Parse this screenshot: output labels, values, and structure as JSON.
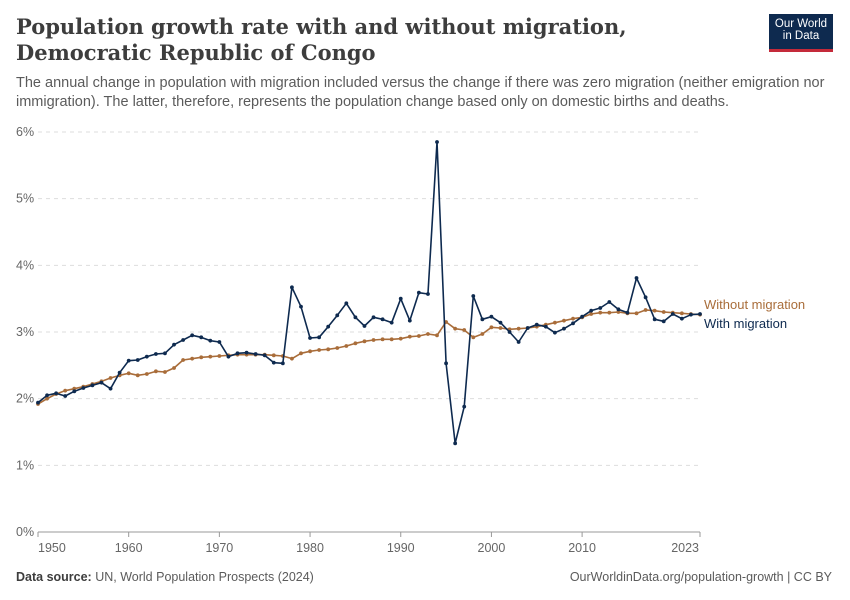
{
  "title": "Population growth rate with and without migration, Democratic Republic of Congo",
  "subtitle": "The annual change in population with migration included versus the change if there was zero migration (neither emigration nor immigration). The latter, therefore, represents the population change based only on domestic births and deaths.",
  "logo": {
    "line1": "Our World",
    "line2": "in Data"
  },
  "footer": {
    "source_label": "Data source:",
    "source_text": "UN, World Population Prospects (2024)",
    "right_text": "OurWorldinData.org/population-growth | CC BY"
  },
  "colors": {
    "with_migration": "#0e2a4f",
    "without_migration": "#a96d3a",
    "grid": "#dddddd",
    "axis": "#999999"
  },
  "chart_data": {
    "type": "line",
    "title": "Population growth rate with and without migration, Democratic Republic of Congo",
    "xlim": [
      1950,
      2023
    ],
    "ylim": [
      0,
      6
    ],
    "y_ticks": [
      0,
      1,
      2,
      3,
      4,
      5,
      6
    ],
    "y_tick_labels": [
      "0%",
      "1%",
      "2%",
      "3%",
      "4%",
      "5%",
      "6%"
    ],
    "x_ticks": [
      1950,
      1960,
      1970,
      1980,
      1990,
      2000,
      2010,
      2023
    ],
    "x_tick_labels": [
      "1950",
      "1960",
      "1970",
      "1980",
      "1990",
      "2000",
      "2010",
      "2023"
    ],
    "grid": "horizontal dashed",
    "legend": "line-end labels",
    "x": [
      1950,
      1951,
      1952,
      1953,
      1954,
      1955,
      1956,
      1957,
      1958,
      1959,
      1960,
      1961,
      1962,
      1963,
      1964,
      1965,
      1966,
      1967,
      1968,
      1969,
      1970,
      1971,
      1972,
      1973,
      1974,
      1975,
      1976,
      1977,
      1978,
      1979,
      1980,
      1981,
      1982,
      1983,
      1984,
      1985,
      1986,
      1987,
      1988,
      1989,
      1990,
      1991,
      1992,
      1993,
      1994,
      1995,
      1996,
      1997,
      1998,
      1999,
      2000,
      2001,
      2002,
      2003,
      2004,
      2005,
      2006,
      2007,
      2008,
      2009,
      2010,
      2011,
      2012,
      2013,
      2014,
      2015,
      2016,
      2017,
      2018,
      2019,
      2020,
      2021,
      2022,
      2023
    ],
    "series": [
      {
        "name": "Without migration",
        "values": [
          1.92,
          2.0,
          2.07,
          2.12,
          2.15,
          2.18,
          2.22,
          2.26,
          2.31,
          2.35,
          2.38,
          2.35,
          2.37,
          2.41,
          2.4,
          2.46,
          2.58,
          2.6,
          2.62,
          2.63,
          2.64,
          2.65,
          2.66,
          2.66,
          2.66,
          2.66,
          2.65,
          2.64,
          2.6,
          2.68,
          2.71,
          2.73,
          2.74,
          2.76,
          2.79,
          2.83,
          2.86,
          2.88,
          2.89,
          2.89,
          2.9,
          2.93,
          2.94,
          2.97,
          2.95,
          3.15,
          3.05,
          3.03,
          2.92,
          2.97,
          3.07,
          3.06,
          3.04,
          3.05,
          3.06,
          3.08,
          3.11,
          3.14,
          3.17,
          3.2,
          3.22,
          3.27,
          3.29,
          3.29,
          3.3,
          3.28,
          3.28,
          3.33,
          3.32,
          3.3,
          3.29,
          3.28,
          3.27,
          3.26
        ]
      },
      {
        "name": "With migration",
        "values": [
          1.94,
          2.05,
          2.08,
          2.04,
          2.11,
          2.16,
          2.2,
          2.24,
          2.15,
          2.39,
          2.57,
          2.58,
          2.63,
          2.67,
          2.68,
          2.81,
          2.88,
          2.95,
          2.92,
          2.87,
          2.85,
          2.63,
          2.68,
          2.69,
          2.67,
          2.65,
          2.54,
          2.53,
          3.67,
          3.38,
          2.91,
          2.92,
          3.08,
          3.25,
          3.43,
          3.22,
          3.09,
          3.22,
          3.19,
          3.14,
          3.5,
          3.17,
          3.59,
          3.57,
          5.85,
          2.53,
          1.33,
          1.88,
          3.54,
          3.19,
          3.23,
          3.14,
          3.0,
          2.85,
          3.06,
          3.11,
          3.08,
          2.99,
          3.05,
          3.13,
          3.23,
          3.32,
          3.36,
          3.45,
          3.34,
          3.29,
          3.81,
          3.52,
          3.19,
          3.16,
          3.27,
          3.2,
          3.26,
          3.27
        ]
      }
    ]
  }
}
